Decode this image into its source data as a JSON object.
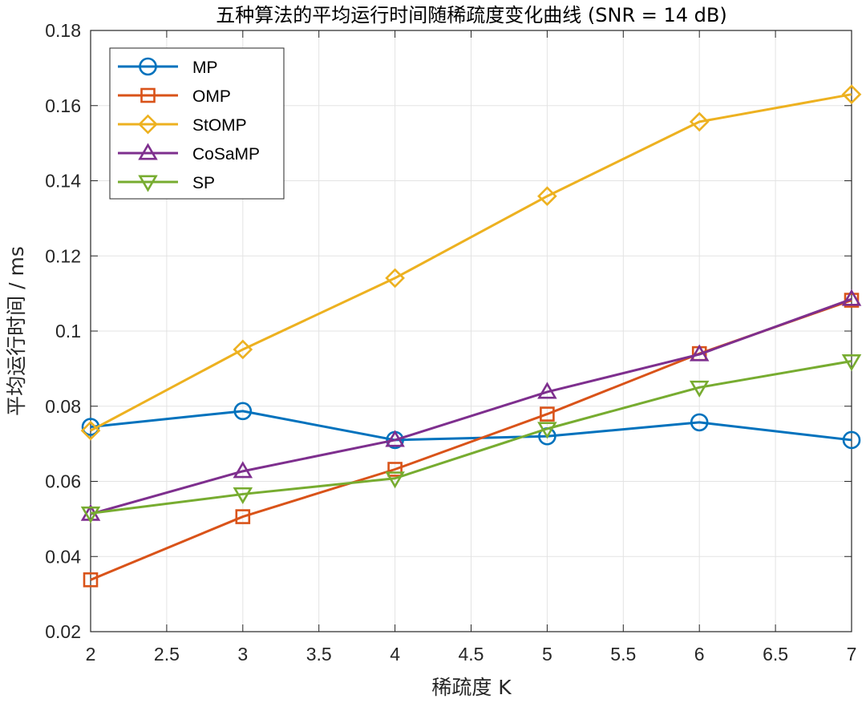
{
  "chart_data": {
    "type": "line",
    "title": "五种算法的平均运行时间随稀疏度变化曲线 (SNR = 14 dB)",
    "xlabel": "稀疏度 K",
    "ylabel": "平均运行时间 / ms",
    "xlim": [
      2,
      7
    ],
    "ylim": [
      0.02,
      0.18
    ],
    "xticks": [
      2,
      2.5,
      3,
      3.5,
      4,
      4.5,
      5,
      5.5,
      6,
      6.5,
      7
    ],
    "xtick_labels": [
      "2",
      "2.5",
      "3",
      "3.5",
      "4",
      "4.5",
      "5",
      "5.5",
      "6",
      "6.5",
      "7"
    ],
    "yticks": [
      0.02,
      0.04,
      0.06,
      0.08,
      0.1,
      0.12,
      0.14,
      0.16,
      0.18
    ],
    "ytick_labels": [
      "0.02",
      "0.04",
      "0.06",
      "0.08",
      "0.1",
      "0.12",
      "0.14",
      "0.16",
      "0.18"
    ],
    "grid": true,
    "legend_position": "top-left",
    "x": [
      2,
      3,
      4,
      5,
      6,
      7
    ],
    "series": [
      {
        "name": "MP",
        "color": "#0072BD",
        "marker": "circle",
        "values": [
          0.0745,
          0.0787,
          0.071,
          0.072,
          0.0757,
          0.071
        ]
      },
      {
        "name": "OMP",
        "color": "#D95319",
        "marker": "square",
        "values": [
          0.0338,
          0.0506,
          0.0632,
          0.0779,
          0.094,
          0.1082
        ]
      },
      {
        "name": "StOMP",
        "color": "#EDB120",
        "marker": "diamond",
        "values": [
          0.0735,
          0.0951,
          0.1141,
          0.1359,
          0.1557,
          0.163
        ]
      },
      {
        "name": "CoSaMP",
        "color": "#7E2F8E",
        "marker": "triangle-up",
        "values": [
          0.0513,
          0.0627,
          0.071,
          0.0838,
          0.0938,
          0.1085
        ]
      },
      {
        "name": "SP",
        "color": "#77AC30",
        "marker": "triangle-down",
        "values": [
          0.0515,
          0.0566,
          0.0608,
          0.074,
          0.085,
          0.092
        ]
      }
    ]
  }
}
